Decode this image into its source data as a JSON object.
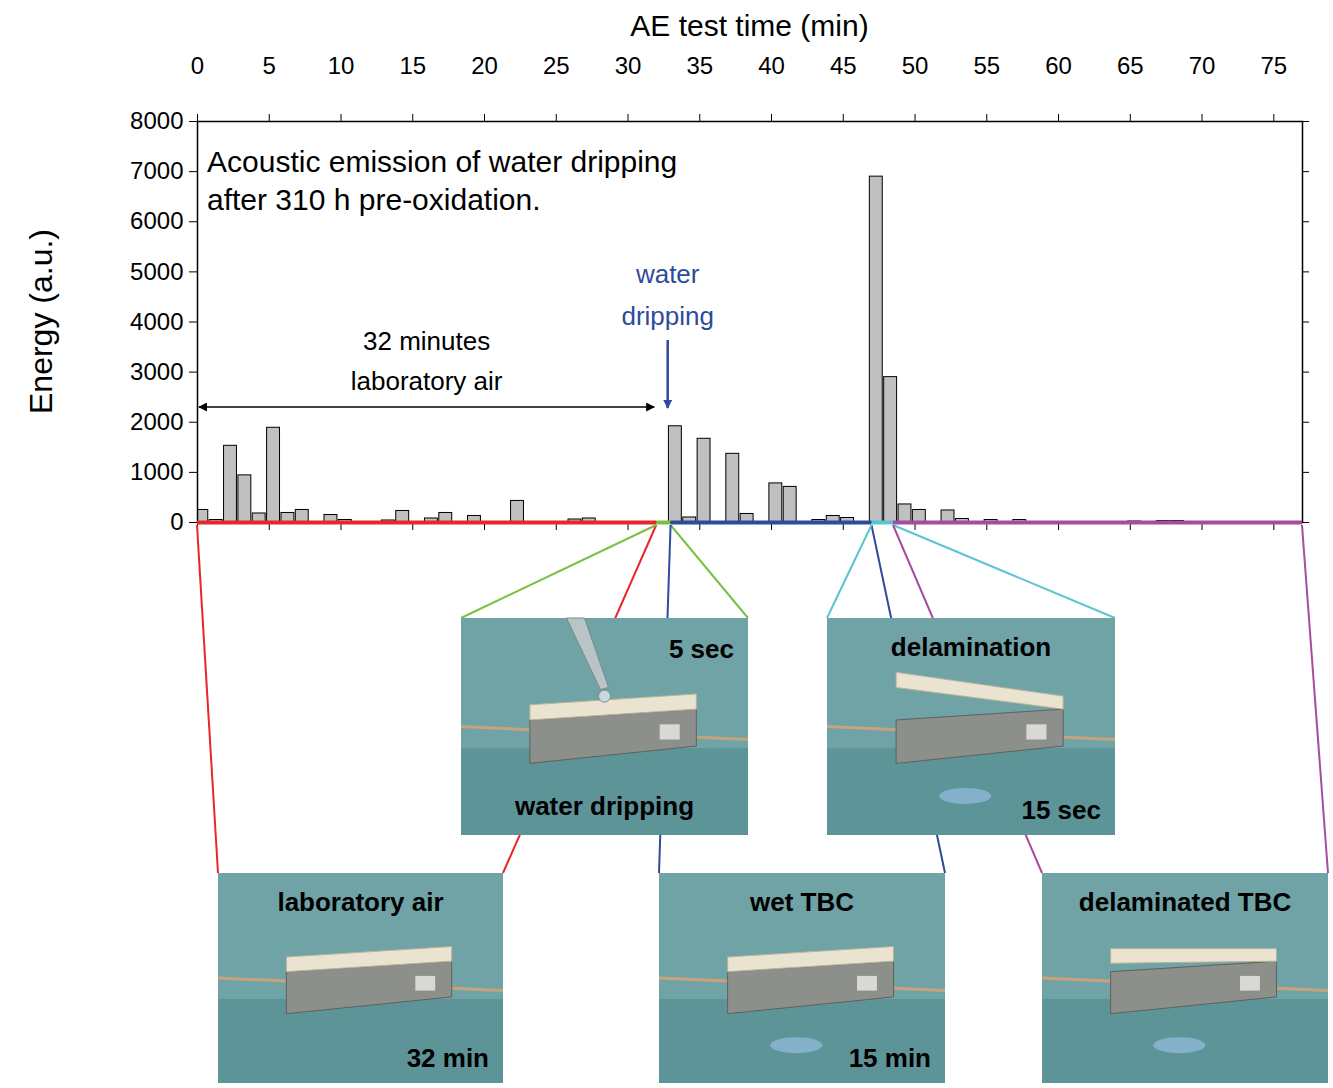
{
  "chart_data": {
    "type": "bar",
    "title": "Acoustic emission of water dripping after 310 h pre-oxidation.",
    "x_label": "AE test time (min)",
    "y_label": "Energy (a.u.)",
    "x": [
      0.3,
      1.3,
      2.3,
      3.3,
      4.3,
      5.3,
      6.3,
      7.3,
      9.3,
      10.3,
      13.3,
      14.3,
      16.3,
      17.3,
      19.3,
      22.3,
      26.3,
      27.3,
      33.3,
      34.3,
      35.3,
      37.3,
      38.3,
      40.3,
      41.3,
      43.3,
      44.3,
      45.3,
      47.3,
      48.3,
      49.3,
      50.3,
      52.3,
      53.3,
      55.3,
      57.3,
      65.3,
      67.3,
      68.3
    ],
    "values": [
      250,
      50,
      1530,
      940,
      180,
      1890,
      190,
      250,
      150,
      50,
      40,
      230,
      80,
      190,
      130,
      430,
      60,
      80,
      1920,
      100,
      1670,
      1370,
      170,
      780,
      710,
      50,
      130,
      90,
      6900,
      2900,
      360,
      250,
      240,
      70,
      50,
      50,
      20,
      30,
      30
    ],
    "color": "#c0c0c0",
    "xlim": [
      0,
      77
    ],
    "xticks": [
      0,
      5,
      10,
      15,
      20,
      25,
      30,
      35,
      40,
      45,
      50,
      55,
      60,
      65,
      70,
      75
    ],
    "ylim": [
      0,
      8000
    ],
    "yticks": [
      0,
      1000,
      2000,
      3000,
      4000,
      5000,
      6000,
      7000,
      8000
    ],
    "grid": false,
    "annotations": [
      {
        "text": "32 minutes laboratory air",
        "x": [
          0,
          32
        ]
      },
      {
        "text": "water dripping",
        "x": 32.8,
        "color": "#2e4b9b"
      }
    ],
    "phases": [
      {
        "start": 0,
        "end": 32,
        "color": "#e8262b",
        "panel": {
          "title": "laboratory air",
          "time": "32 min"
        }
      },
      {
        "start": 32,
        "end": 33,
        "color": "#7ac143",
        "panel": {
          "title": "water dripping",
          "time": "5 sec"
        }
      },
      {
        "start": 33,
        "end": 47,
        "color": "#2e4b9b",
        "panel": {
          "title": "wet TBC",
          "time": "15 min"
        }
      },
      {
        "start": 47,
        "end": 48.5,
        "color": "#5bc4d1",
        "panel": {
          "title": "delamination",
          "time": "15 sec"
        }
      },
      {
        "start": 48.5,
        "end": 77,
        "color": "#a64c9e",
        "panel": {
          "title": "delaminated TBC"
        }
      }
    ]
  }
}
